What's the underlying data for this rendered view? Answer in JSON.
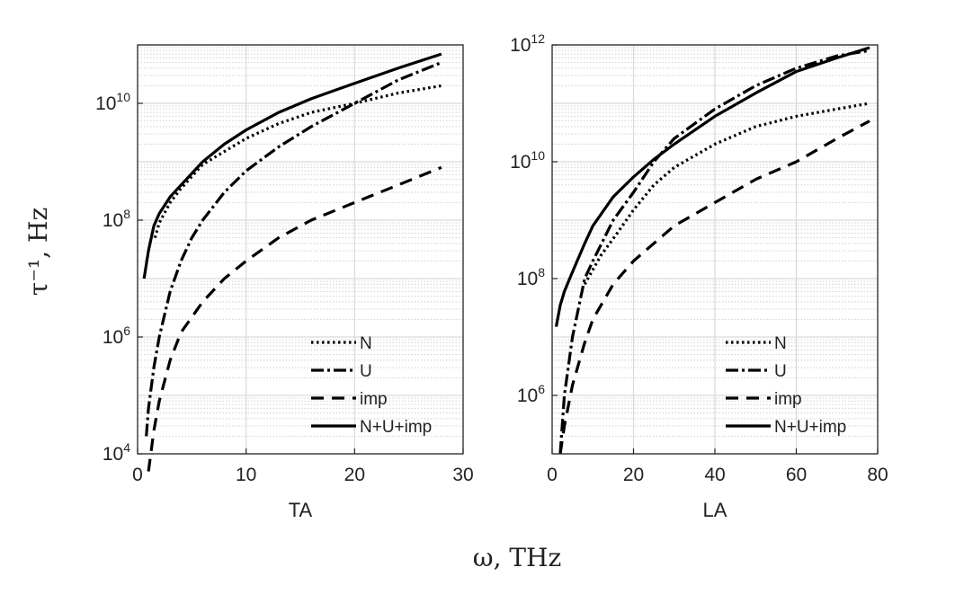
{
  "figure": {
    "ylabel": "τ⁻¹, Hz",
    "xlabel": "ω, THz"
  },
  "chart_data": [
    {
      "type": "line",
      "panel": "TA",
      "xlabel": "TA",
      "y_scale": "log",
      "xlim": [
        0,
        30
      ],
      "ylim": [
        10000,
        100000000000
      ],
      "x_ticks": [
        0,
        10,
        20,
        30
      ],
      "y_ticks": [
        10000,
        1000000,
        100000000,
        10000000000
      ],
      "y_tick_labels": [
        [
          "10",
          "4"
        ],
        [
          "10",
          "6"
        ],
        [
          "10",
          "8"
        ],
        [
          "10",
          "10"
        ]
      ],
      "grid": true,
      "legend": "bottom-right",
      "series": [
        {
          "name": "N",
          "style": "dotted",
          "x": [
            1.6,
            2,
            3,
            4,
            6,
            8,
            10,
            13,
            16,
            20,
            24,
            28
          ],
          "y": [
            50000000,
            90000000,
            200000000,
            350000000,
            900000000,
            1500000000,
            2500000000,
            4500000000,
            7000000000,
            10000000000,
            15000000000,
            20000000000
          ]
        },
        {
          "name": "U",
          "style": "dashdot",
          "x": [
            0.8,
            1,
            1.5,
            2,
            3,
            4,
            5,
            6,
            8,
            10,
            13,
            16,
            20,
            24,
            28
          ],
          "y": [
            20000,
            60000,
            300000,
            1000000,
            6000000,
            20000000,
            50000000,
            100000000,
            300000000,
            700000000,
            1800000000,
            4000000000,
            10000000000,
            25000000000,
            50000000000
          ]
        },
        {
          "name": "imp",
          "style": "dashed",
          "x": [
            1,
            1.5,
            2,
            3,
            4,
            6,
            8,
            10,
            13,
            16,
            20,
            24,
            28
          ],
          "y": [
            5000,
            25000,
            80000,
            400000,
            1200000,
            4000000,
            10000000,
            20000000,
            50000000,
            100000000,
            200000000,
            400000000,
            800000000
          ]
        },
        {
          "name": "N+U+imp",
          "style": "solid",
          "x": [
            0.6,
            1,
            1.5,
            2,
            3,
            4,
            6,
            8,
            10,
            13,
            16,
            20,
            24,
            28
          ],
          "y": [
            10000000,
            30000000,
            80000000,
            130000000,
            250000000,
            400000000,
            1000000000,
            2000000000,
            3500000000,
            7000000000,
            12000000000,
            22000000000,
            40000000000,
            70000000000
          ]
        }
      ]
    },
    {
      "type": "line",
      "panel": "LA",
      "xlabel": "LA",
      "y_scale": "log",
      "xlim": [
        0,
        80
      ],
      "ylim": [
        100000,
        1000000000000
      ],
      "x_ticks": [
        0,
        20,
        40,
        60,
        80
      ],
      "y_ticks": [
        1000000,
        100000000,
        10000000000,
        1000000000000
      ],
      "y_tick_labels": [
        [
          "10",
          "6"
        ],
        [
          "10",
          "8"
        ],
        [
          "10",
          "10"
        ],
        [
          "10",
          "12"
        ]
      ],
      "grid": true,
      "legend": "bottom-right",
      "series": [
        {
          "name": "N",
          "style": "dotted",
          "x": [
            8,
            12,
            16,
            20,
            25,
            30,
            40,
            50,
            60,
            70,
            78
          ],
          "y": [
            80000000,
            250000000,
            600000000,
            1500000000,
            4000000000,
            8000000000,
            20000000000,
            40000000000,
            60000000000,
            80000000000,
            100000000000
          ]
        },
        {
          "name": "U",
          "style": "dashdot",
          "x": [
            2,
            3,
            5,
            8,
            10,
            15,
            20,
            25,
            30,
            40,
            50,
            60,
            70,
            78
          ],
          "y": [
            100000,
            1000000,
            10000000,
            100000000,
            200000000,
            1000000000,
            3000000000,
            10000000000,
            25000000000,
            80000000000,
            200000000000,
            400000000000,
            650000000000,
            800000000000
          ]
        },
        {
          "name": "imp",
          "style": "dashed",
          "x": [
            2,
            3,
            5,
            8,
            10,
            15,
            20,
            30,
            40,
            50,
            60,
            70,
            78
          ],
          "y": [
            100000,
            300000,
            1500000,
            8000000,
            20000000,
            80000000,
            200000000,
            800000000,
            2000000000,
            5000000000,
            10000000000,
            25000000000,
            50000000000
          ]
        },
        {
          "name": "N+U+imp",
          "style": "solid",
          "x": [
            1,
            2,
            3,
            5,
            8,
            10,
            15,
            20,
            25,
            30,
            40,
            50,
            60,
            70,
            78
          ],
          "y": [
            15000000,
            35000000,
            60000000,
            130000000,
            400000000,
            800000000,
            2500000000,
            5500000000,
            11000000000,
            20000000000,
            60000000000,
            150000000000,
            350000000000,
            600000000000,
            900000000000
          ]
        }
      ]
    }
  ]
}
